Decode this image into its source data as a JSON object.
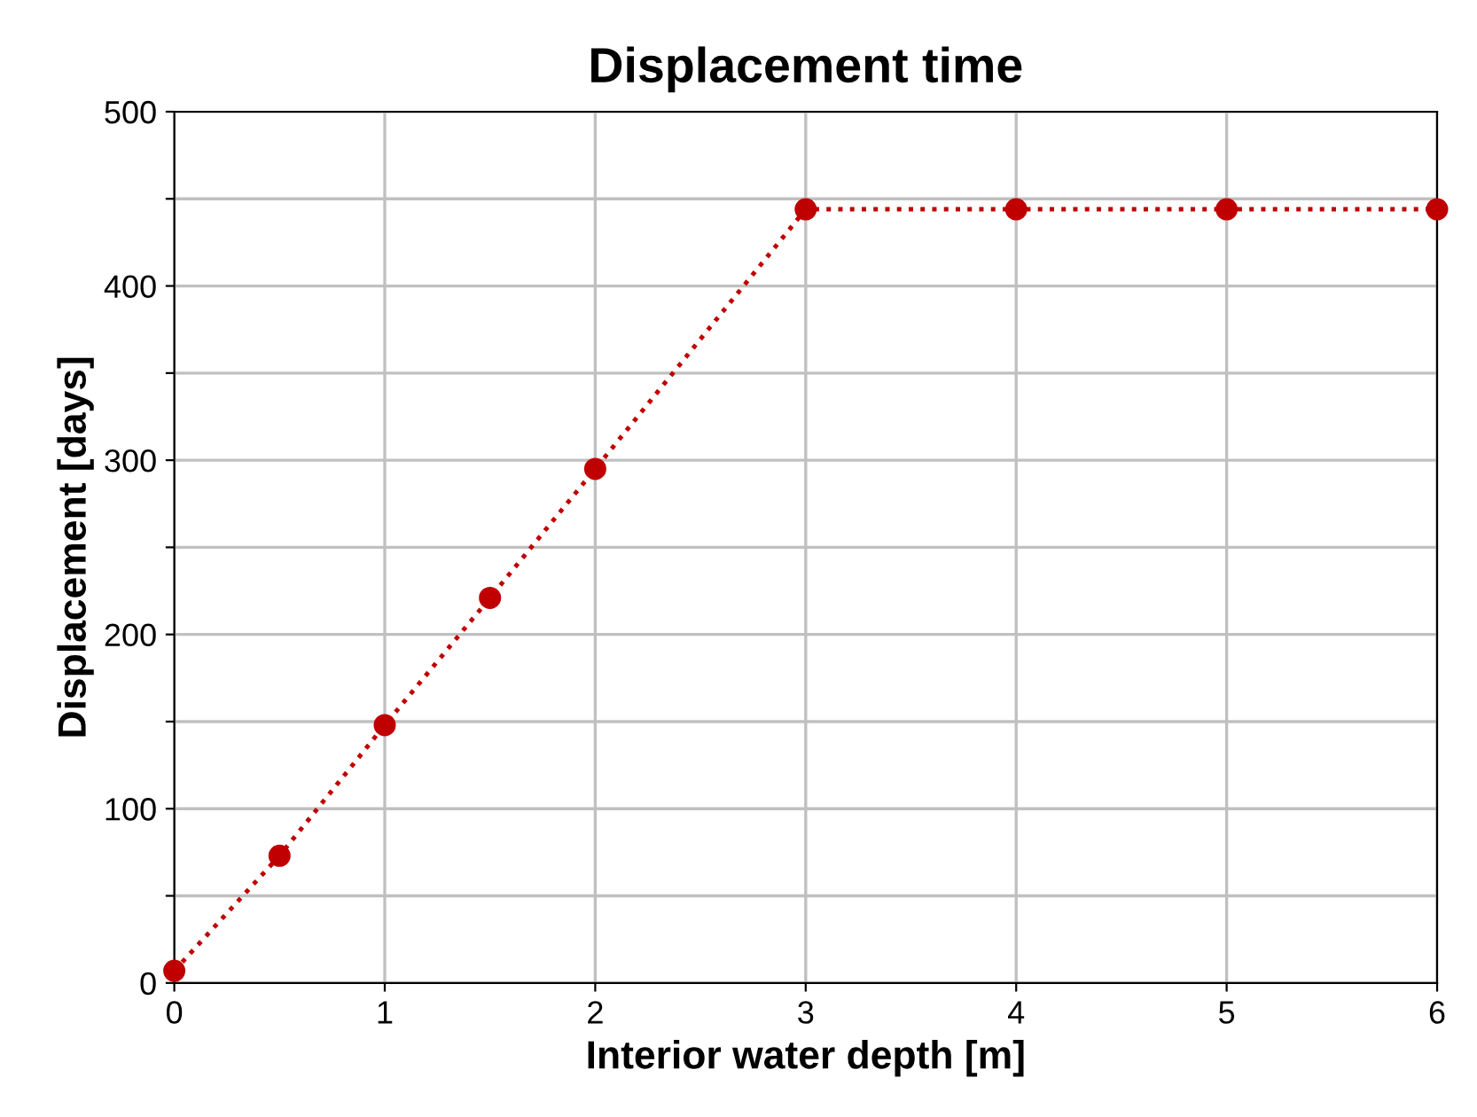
{
  "chart_data": {
    "type": "line",
    "title": "Displacement time",
    "xlabel": "Interior water depth [m]",
    "ylabel": "Displacement [days]",
    "x": [
      0,
      0.5,
      1,
      1.5,
      2,
      3,
      4,
      5,
      6
    ],
    "series": [
      {
        "color": "#c00000",
        "values": [
          7,
          73,
          148,
          221,
          295,
          444,
          444,
          444,
          444
        ]
      }
    ],
    "xlim": [
      0,
      6
    ],
    "xticks": [
      0,
      1,
      2,
      3,
      4,
      5,
      6
    ],
    "ylim": [
      0,
      500
    ],
    "yticks": [
      0,
      {
        "value": 50,
        "label": null
      },
      100,
      {
        "value": 150,
        "label": null
      },
      200,
      {
        "value": 250,
        "label": null
      },
      300,
      {
        "value": 350,
        "label": null
      },
      400,
      {
        "value": 450,
        "label": null
      },
      500
    ],
    "grid": true,
    "marker": "circle",
    "line_style": "dotted"
  }
}
